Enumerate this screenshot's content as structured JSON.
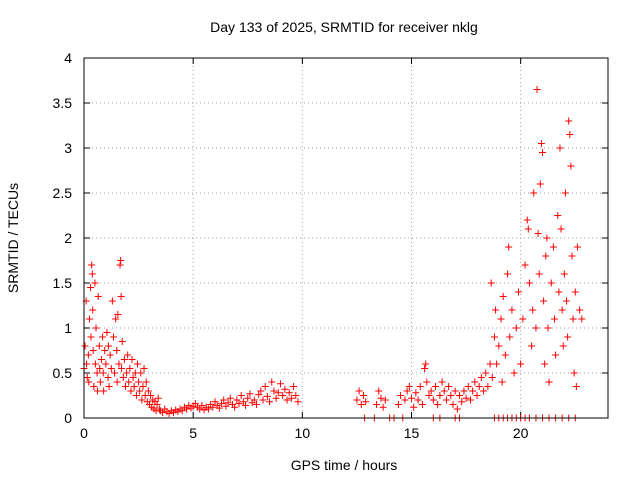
{
  "chart_data": {
    "type": "scatter",
    "title": "Day 133 of 2025, SRMTID for receiver nklg",
    "xlabel": "GPS time / hours",
    "ylabel": "SRMTID / TECUs",
    "xlim": [
      0,
      24
    ],
    "ylim": [
      0,
      4
    ],
    "xticks": [
      0,
      5,
      10,
      15,
      20
    ],
    "yticks": [
      0,
      0.5,
      1,
      1.5,
      2,
      2.5,
      3,
      3.5,
      4
    ],
    "xtick_labels": [
      "0",
      "5",
      "10",
      "15",
      "20"
    ],
    "ytick_labels": [
      "0",
      "0.5",
      "1",
      "1.5",
      "2",
      "2.5",
      "3",
      "3.5",
      "4"
    ],
    "grid": true,
    "marker": "+",
    "color": "#ff0000",
    "series": [
      {
        "name": "SRMTID",
        "points": [
          [
            0.0,
            0.55
          ],
          [
            0.05,
            0.8
          ],
          [
            0.1,
            1.3
          ],
          [
            0.12,
            0.6
          ],
          [
            0.15,
            0.45
          ],
          [
            0.2,
            0.7
          ],
          [
            0.22,
            0.4
          ],
          [
            0.25,
            1.1
          ],
          [
            0.3,
            1.45
          ],
          [
            0.32,
            0.9
          ],
          [
            0.35,
            1.7
          ],
          [
            0.38,
            1.6
          ],
          [
            0.4,
            1.2
          ],
          [
            0.42,
            0.75
          ],
          [
            0.45,
            0.35
          ],
          [
            0.5,
            1.5
          ],
          [
            0.52,
            0.6
          ],
          [
            0.55,
            1.0
          ],
          [
            0.6,
            0.5
          ],
          [
            0.62,
            0.3
          ],
          [
            0.65,
            1.35
          ],
          [
            0.7,
            0.8
          ],
          [
            0.72,
            0.55
          ],
          [
            0.75,
            0.4
          ],
          [
            0.8,
            0.65
          ],
          [
            0.85,
            0.9
          ],
          [
            0.88,
            0.5
          ],
          [
            0.9,
            0.3
          ],
          [
            0.95,
            0.75
          ],
          [
            1.0,
            0.6
          ],
          [
            1.05,
            0.95
          ],
          [
            1.1,
            0.45
          ],
          [
            1.12,
            0.8
          ],
          [
            1.15,
            0.35
          ],
          [
            1.2,
            0.7
          ],
          [
            1.25,
            0.55
          ],
          [
            1.3,
            1.3
          ],
          [
            1.35,
            0.9
          ],
          [
            1.4,
            0.5
          ],
          [
            1.45,
            1.1
          ],
          [
            1.5,
            0.75
          ],
          [
            1.52,
            0.4
          ],
          [
            1.55,
            1.15
          ],
          [
            1.6,
            0.6
          ],
          [
            1.65,
            1.7
          ],
          [
            1.68,
            1.75
          ],
          [
            1.7,
            1.35
          ],
          [
            1.72,
            0.55
          ],
          [
            1.75,
            0.85
          ],
          [
            1.8,
            0.45
          ],
          [
            1.85,
            0.65
          ],
          [
            1.9,
            0.35
          ],
          [
            1.95,
            0.5
          ],
          [
            2.0,
            0.7
          ],
          [
            2.05,
            0.4
          ],
          [
            2.1,
            0.55
          ],
          [
            2.15,
            0.3
          ],
          [
            2.2,
            0.65
          ],
          [
            2.25,
            0.45
          ],
          [
            2.3,
            0.35
          ],
          [
            2.35,
            0.5
          ],
          [
            2.4,
            0.25
          ],
          [
            2.45,
            0.6
          ],
          [
            2.5,
            0.4
          ],
          [
            2.55,
            0.3
          ],
          [
            2.6,
            0.5
          ],
          [
            2.65,
            0.2
          ],
          [
            2.7,
            0.35
          ],
          [
            2.75,
            0.55
          ],
          [
            2.8,
            0.25
          ],
          [
            2.85,
            0.4
          ],
          [
            2.9,
            0.18
          ],
          [
            2.95,
            0.3
          ],
          [
            3.0,
            0.15
          ],
          [
            3.05,
            0.25
          ],
          [
            3.1,
            0.12
          ],
          [
            3.15,
            0.2
          ],
          [
            3.2,
            0.1
          ],
          [
            3.25,
            0.18
          ],
          [
            3.3,
            0.08
          ],
          [
            3.35,
            0.15
          ],
          [
            3.4,
            0.22
          ],
          [
            3.45,
            0.1
          ],
          [
            3.5,
            0.08
          ],
          [
            3.6,
            0.06
          ],
          [
            3.7,
            0.1
          ],
          [
            3.8,
            0.07
          ],
          [
            3.9,
            0.05
          ],
          [
            4.0,
            0.08
          ],
          [
            4.1,
            0.06
          ],
          [
            4.2,
            0.09
          ],
          [
            4.3,
            0.07
          ],
          [
            4.4,
            0.1
          ],
          [
            4.5,
            0.08
          ],
          [
            4.6,
            0.12
          ],
          [
            4.7,
            0.1
          ],
          [
            4.8,
            0.14
          ],
          [
            4.9,
            0.11
          ],
          [
            5.0,
            0.13
          ],
          [
            5.1,
            0.16
          ],
          [
            5.2,
            0.12
          ],
          [
            5.3,
            0.1
          ],
          [
            5.4,
            0.14
          ],
          [
            5.5,
            0.09
          ],
          [
            5.6,
            0.12
          ],
          [
            5.7,
            0.1
          ],
          [
            5.8,
            0.15
          ],
          [
            5.9,
            0.12
          ],
          [
            6.0,
            0.18
          ],
          [
            6.1,
            0.14
          ],
          [
            6.2,
            0.11
          ],
          [
            6.3,
            0.16
          ],
          [
            6.4,
            0.2
          ],
          [
            6.5,
            0.13
          ],
          [
            6.6,
            0.17
          ],
          [
            6.7,
            0.22
          ],
          [
            6.8,
            0.15
          ],
          [
            6.9,
            0.12
          ],
          [
            7.0,
            0.2
          ],
          [
            7.1,
            0.16
          ],
          [
            7.2,
            0.25
          ],
          [
            7.3,
            0.18
          ],
          [
            7.4,
            0.14
          ],
          [
            7.5,
            0.22
          ],
          [
            7.6,
            0.27
          ],
          [
            7.7,
            0.17
          ],
          [
            7.8,
            0.2
          ],
          [
            7.9,
            0.15
          ],
          [
            8.0,
            0.26
          ],
          [
            8.1,
            0.3
          ],
          [
            8.2,
            0.2
          ],
          [
            8.3,
            0.35
          ],
          [
            8.4,
            0.24
          ],
          [
            8.5,
            0.18
          ],
          [
            8.6,
            0.4
          ],
          [
            8.7,
            0.3
          ],
          [
            8.8,
            0.22
          ],
          [
            8.9,
            0.28
          ],
          [
            9.0,
            0.38
          ],
          [
            9.1,
            0.25
          ],
          [
            9.2,
            0.32
          ],
          [
            9.3,
            0.2
          ],
          [
            9.4,
            0.28
          ],
          [
            9.5,
            0.22
          ],
          [
            9.6,
            0.35
          ],
          [
            9.7,
            0.25
          ],
          [
            9.8,
            0.18
          ],
          [
            12.5,
            0.2
          ],
          [
            12.6,
            0.3
          ],
          [
            12.7,
            0.15
          ],
          [
            12.8,
            0.25
          ],
          [
            12.85,
            0.0
          ],
          [
            12.9,
            0.18
          ],
          [
            13.3,
            0.0
          ],
          [
            13.4,
            0.15
          ],
          [
            13.5,
            0.3
          ],
          [
            13.6,
            0.22
          ],
          [
            13.7,
            0.12
          ],
          [
            13.8,
            0.2
          ],
          [
            14.0,
            0.0
          ],
          [
            14.2,
            0.0
          ],
          [
            14.4,
            0.15
          ],
          [
            14.5,
            0.25
          ],
          [
            14.6,
            0.0
          ],
          [
            14.7,
            0.2
          ],
          [
            14.8,
            0.3
          ],
          [
            14.9,
            0.35
          ],
          [
            15.0,
            0.22
          ],
          [
            15.1,
            0.12
          ],
          [
            15.2,
            0.28
          ],
          [
            15.3,
            0.2
          ],
          [
            15.4,
            0.35
          ],
          [
            15.5,
            0.15
          ],
          [
            15.6,
            0.55
          ],
          [
            15.65,
            0.6
          ],
          [
            15.7,
            0.4
          ],
          [
            15.8,
            0.25
          ],
          [
            15.9,
            0.3
          ],
          [
            16.0,
            0.2
          ],
          [
            16.1,
            0.35
          ],
          [
            16.2,
            0.15
          ],
          [
            16.3,
            0.25
          ],
          [
            16.4,
            0.4
          ],
          [
            16.5,
            0.3
          ],
          [
            16.6,
            0.2
          ],
          [
            16.7,
            0.35
          ],
          [
            16.8,
            0.25
          ],
          [
            16.9,
            0.15
          ],
          [
            17.0,
            0.3
          ],
          [
            17.1,
            0.1
          ],
          [
            17.2,
            0.25
          ],
          [
            17.3,
            0.18
          ],
          [
            17.4,
            0.3
          ],
          [
            17.5,
            0.22
          ],
          [
            17.6,
            0.35
          ],
          [
            17.7,
            0.2
          ],
          [
            17.8,
            0.3
          ],
          [
            17.9,
            0.4
          ],
          [
            18.0,
            0.25
          ],
          [
            18.1,
            0.35
          ],
          [
            18.2,
            0.45
          ],
          [
            18.3,
            0.3
          ],
          [
            18.4,
            0.5
          ],
          [
            18.5,
            0.35
          ],
          [
            18.6,
            0.6
          ],
          [
            18.65,
            1.5
          ],
          [
            18.7,
            0.45
          ],
          [
            18.8,
            0.9
          ],
          [
            18.85,
            1.2
          ],
          [
            18.9,
            0.6
          ],
          [
            19.0,
            0.8
          ],
          [
            19.1,
            1.1
          ],
          [
            19.15,
            0.4
          ],
          [
            19.2,
            1.35
          ],
          [
            19.3,
            0.7
          ],
          [
            19.4,
            1.6
          ],
          [
            19.45,
            1.9
          ],
          [
            19.5,
            0.9
          ],
          [
            19.6,
            1.2
          ],
          [
            19.7,
            0.5
          ],
          [
            19.8,
            1.0
          ],
          [
            19.9,
            1.4
          ],
          [
            20.0,
            0.6
          ],
          [
            20.1,
            1.1
          ],
          [
            20.2,
            1.7
          ],
          [
            20.3,
            2.2
          ],
          [
            20.35,
            2.1
          ],
          [
            20.4,
            1.5
          ],
          [
            20.5,
            0.8
          ],
          [
            20.55,
            1.2
          ],
          [
            20.6,
            2.5
          ],
          [
            20.7,
            1.0
          ],
          [
            20.8,
            2.05
          ],
          [
            20.85,
            1.6
          ],
          [
            20.9,
            2.6
          ],
          [
            20.95,
            3.05
          ],
          [
            21.0,
            2.95
          ],
          [
            21.05,
            1.3
          ],
          [
            21.1,
            0.6
          ],
          [
            21.15,
            1.8
          ],
          [
            21.2,
            2.0
          ],
          [
            21.25,
            1.0
          ],
          [
            21.3,
            0.4
          ],
          [
            21.4,
            1.5
          ],
          [
            21.5,
            1.9
          ],
          [
            21.55,
            1.1
          ],
          [
            21.6,
            0.7
          ],
          [
            21.7,
            2.25
          ],
          [
            21.75,
            1.4
          ],
          [
            21.8,
            3.0
          ],
          [
            21.85,
            2.1
          ],
          [
            21.9,
            1.2
          ],
          [
            21.95,
            0.8
          ],
          [
            22.0,
            1.6
          ],
          [
            22.05,
            2.5
          ],
          [
            22.1,
            1.3
          ],
          [
            22.15,
            0.9
          ],
          [
            22.2,
            3.3
          ],
          [
            22.25,
            3.15
          ],
          [
            22.3,
            2.8
          ],
          [
            22.35,
            1.8
          ],
          [
            22.4,
            1.1
          ],
          [
            22.45,
            0.5
          ],
          [
            22.5,
            1.4
          ],
          [
            22.55,
            0.35
          ],
          [
            22.6,
            1.9
          ],
          [
            22.7,
            1.2
          ],
          [
            22.8,
            1.1
          ],
          [
            20.75,
            3.65
          ],
          [
            18.8,
            0.0
          ],
          [
            19.0,
            0.0
          ],
          [
            19.2,
            0.0
          ],
          [
            19.4,
            0.0
          ],
          [
            19.6,
            0.0
          ],
          [
            19.8,
            0.0
          ],
          [
            20.0,
            0.0
          ],
          [
            20.2,
            0.0
          ],
          [
            20.4,
            0.0
          ],
          [
            20.7,
            0.0
          ],
          [
            21.0,
            0.0
          ],
          [
            21.3,
            0.0
          ],
          [
            21.6,
            0.0
          ],
          [
            21.9,
            0.0
          ],
          [
            22.2,
            0.0
          ],
          [
            22.5,
            0.0
          ],
          [
            17.0,
            0.0
          ],
          [
            17.2,
            0.0
          ],
          [
            16.0,
            0.0
          ],
          [
            16.3,
            0.0
          ]
        ]
      }
    ]
  }
}
